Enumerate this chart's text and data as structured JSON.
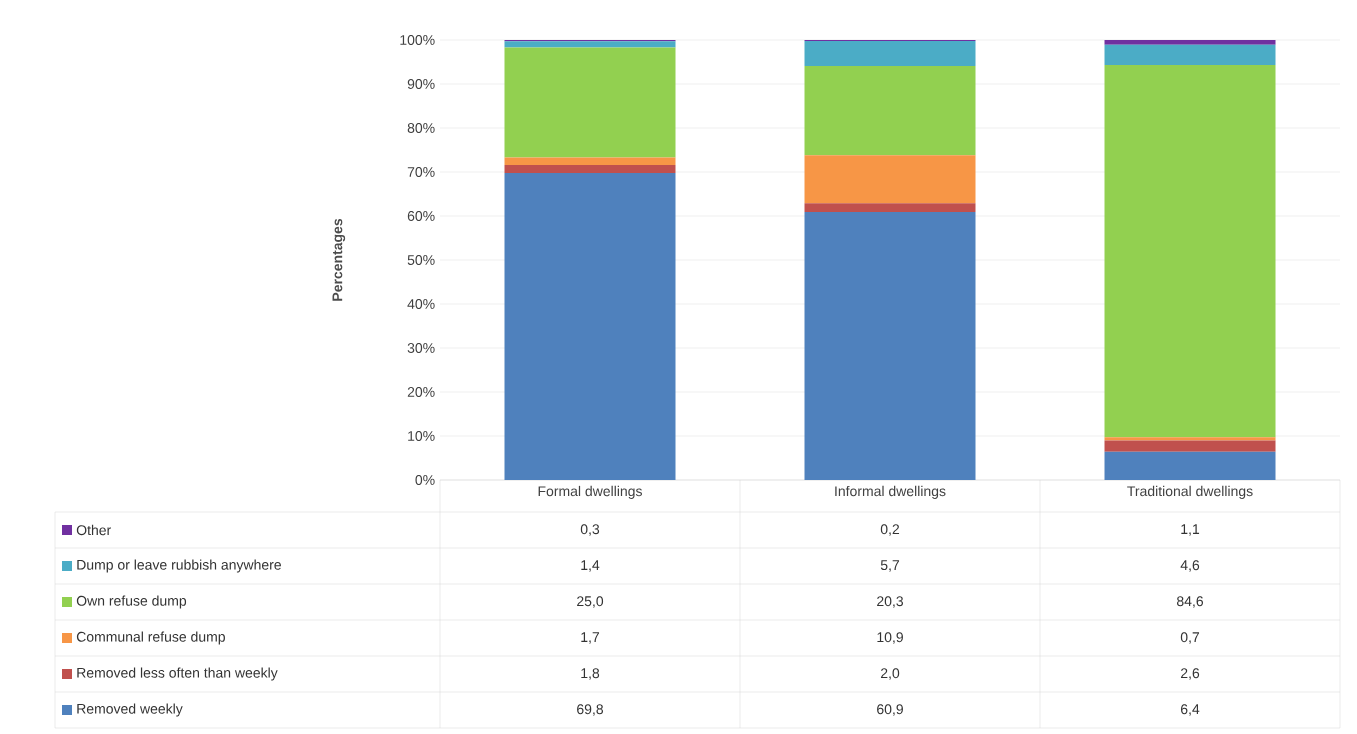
{
  "chart_data": {
    "type": "bar",
    "stacked": true,
    "ylabel": "Percentages",
    "categories": [
      "Formal dwellings",
      "Informal dwellings",
      "Traditional dwellings"
    ],
    "series": [
      {
        "name": "Removed weekly",
        "color": "#4f81bd",
        "values": [
          69.8,
          60.9,
          6.4
        ],
        "value_labels": [
          "69,8",
          "60,9",
          "6,4"
        ]
      },
      {
        "name": "Removed less often than weekly",
        "color": "#c0504d",
        "values": [
          1.8,
          2.0,
          2.6
        ],
        "value_labels": [
          "1,8",
          "2,0",
          "2,6"
        ]
      },
      {
        "name": "Communal refuse dump",
        "color": "#f79646",
        "values": [
          1.7,
          10.9,
          0.7
        ],
        "value_labels": [
          "1,7",
          "10,9",
          "0,7"
        ]
      },
      {
        "name": "Own refuse dump",
        "color": "#92d050",
        "values": [
          25.0,
          20.3,
          84.6
        ],
        "value_labels": [
          "25,0",
          "20,3",
          "84,6"
        ]
      },
      {
        "name": "Dump or leave rubbish anywhere",
        "color": "#4bacc6",
        "values": [
          1.4,
          5.7,
          4.6
        ],
        "value_labels": [
          "1,4",
          "5,7",
          "4,6"
        ]
      },
      {
        "name": "Other",
        "color": "#7030a0",
        "values": [
          0.3,
          0.2,
          1.1
        ],
        "value_labels": [
          "0,3",
          "0,2",
          "1,1"
        ]
      }
    ],
    "ylim": [
      0,
      100
    ],
    "yticks": [
      {
        "value": 0,
        "label": "0%"
      },
      {
        "value": 10,
        "label": "10%"
      },
      {
        "value": 20,
        "label": "20%"
      },
      {
        "value": 30,
        "label": "30%"
      },
      {
        "value": 40,
        "label": "40%"
      },
      {
        "value": 50,
        "label": "50%"
      },
      {
        "value": 60,
        "label": "60%"
      },
      {
        "value": 70,
        "label": "70%"
      },
      {
        "value": 80,
        "label": "80%"
      },
      {
        "value": 90,
        "label": "90%"
      },
      {
        "value": 100,
        "label": "100%"
      }
    ],
    "grid": "y",
    "legend": "bottom"
  }
}
